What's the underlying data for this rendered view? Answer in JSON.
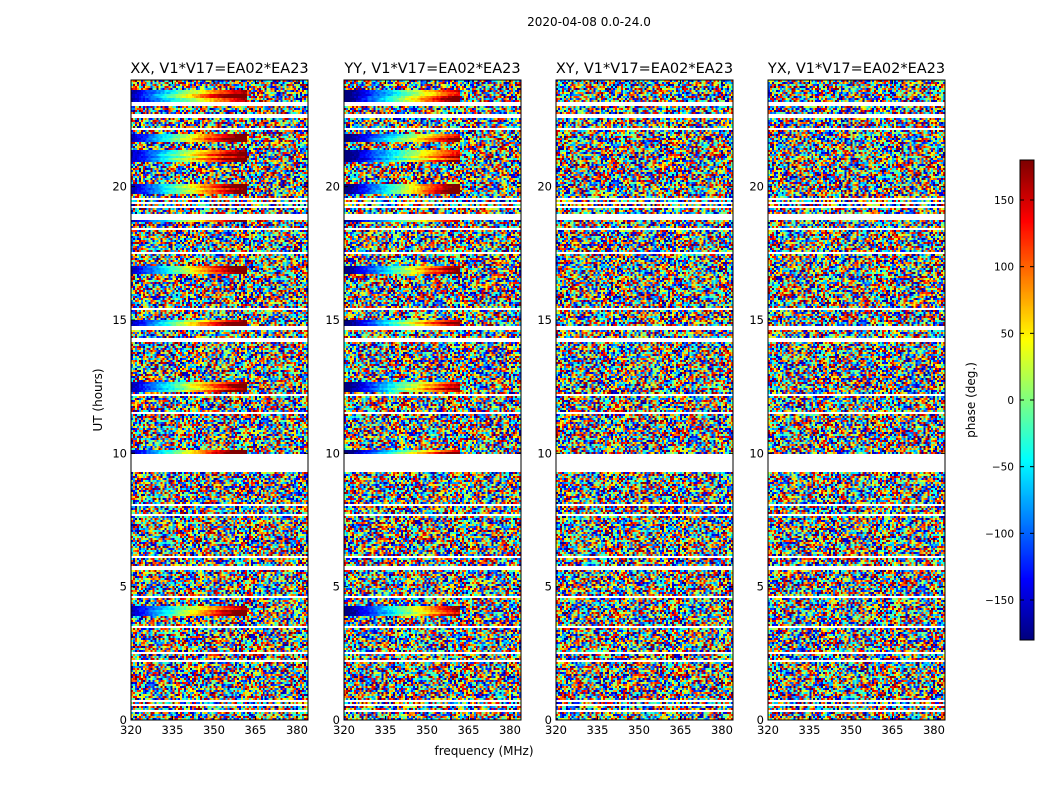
{
  "chart_data": {
    "type": "heatmap",
    "suptitle": "2020-04-08 0.0-24.0",
    "panels": [
      {
        "title": "XX, V1*V17=EA02*EA23",
        "pol": "XX"
      },
      {
        "title": "YY, V1*V17=EA02*EA23",
        "pol": "YY"
      },
      {
        "title": "XY, V1*V17=EA02*EA23",
        "pol": "XY"
      },
      {
        "title": "YX, V1*V17=EA02*EA23",
        "pol": "YX"
      }
    ],
    "xlabel": "frequency (MHz)",
    "ylabel": "UT (hours)",
    "xlim": [
      320,
      384
    ],
    "ylim": [
      0,
      24
    ],
    "xticks": [
      320,
      335,
      350,
      365,
      380
    ],
    "yticks": [
      0,
      5,
      10,
      15,
      20
    ],
    "colorbar": {
      "label": "phase (deg.)",
      "range": [
        -180,
        180
      ],
      "ticks": [
        150,
        100,
        50,
        0,
        -50,
        -100,
        -150
      ],
      "tick_labels": [
        "150",
        "100",
        "50",
        "0",
        "−50",
        "−100",
        "−150"
      ],
      "colormap": "jet"
    }
  }
}
